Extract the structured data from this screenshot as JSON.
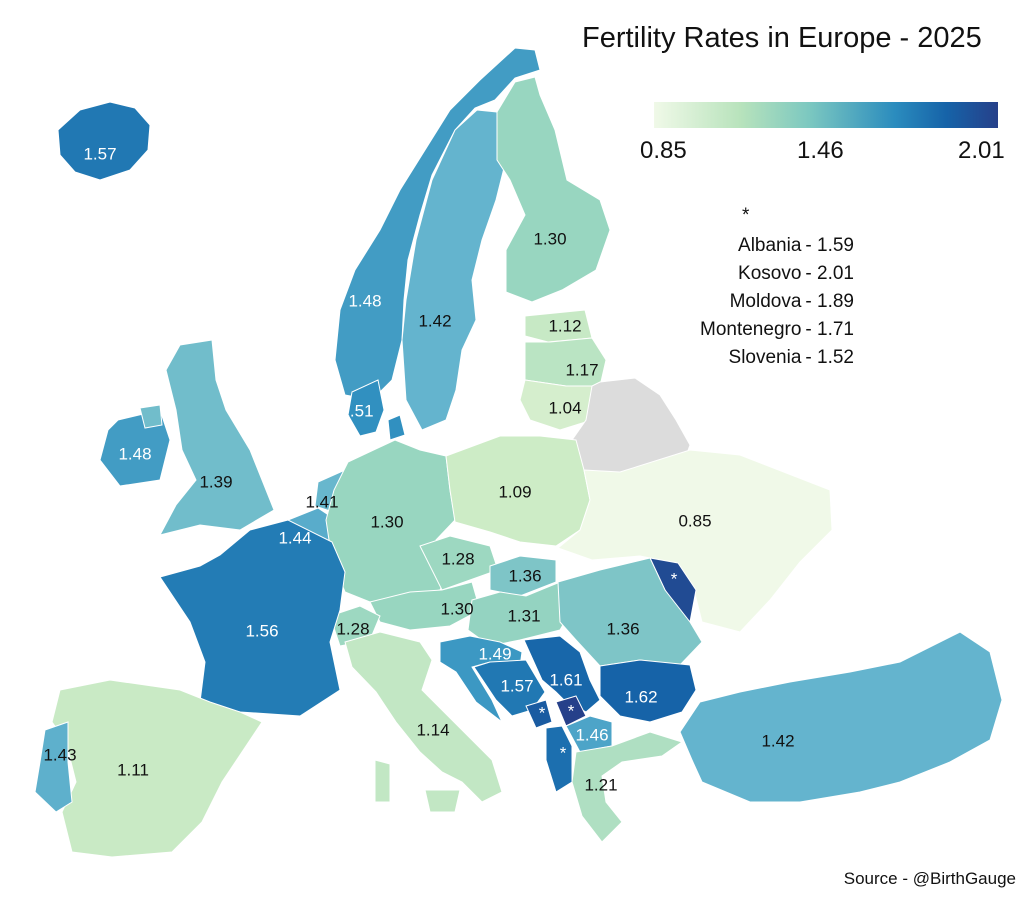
{
  "title": "Fertility Rates in Europe - 2025",
  "legend": {
    "min": "0.85",
    "mid": "1.46",
    "max": "2.01",
    "colors": [
      "#f0f9e8",
      "#b8e3bc",
      "#7cc8c0",
      "#2b8cbe",
      "#1663a8",
      "#26408a"
    ]
  },
  "footnote": {
    "marker": "*",
    "items": [
      {
        "country": "Albania",
        "value": "- 1.59"
      },
      {
        "country": "Kosovo",
        "value": "- 2.01"
      },
      {
        "country": "Moldova",
        "value": "- 1.89"
      },
      {
        "country": "Montenegro",
        "value": "- 1.71"
      },
      {
        "country": "Slovenia",
        "value": "- 1.52"
      }
    ]
  },
  "source": "Source - @BirthGauge",
  "no_data_color": "#dcdcdc",
  "countries": [
    {
      "name": "Iceland",
      "value": 1.57,
      "label": "1.57"
    },
    {
      "name": "Norway",
      "value": 1.48,
      "label": "1.48"
    },
    {
      "name": "Sweden",
      "value": 1.42,
      "label": "1.42"
    },
    {
      "name": "Finland",
      "value": 1.3,
      "label": "1.30"
    },
    {
      "name": "Estonia",
      "value": 1.12,
      "label": "1.12"
    },
    {
      "name": "Latvia",
      "value": 1.17,
      "label": "1.17"
    },
    {
      "name": "Lithuania",
      "value": 1.04,
      "label": "1.04"
    },
    {
      "name": "Belarus",
      "value": null,
      "label": ""
    },
    {
      "name": "Denmark",
      "value": 1.51,
      "label": "1.51"
    },
    {
      "name": "Ireland",
      "value": 1.48,
      "label": "1.48"
    },
    {
      "name": "United Kingdom",
      "value": 1.39,
      "label": "1.39"
    },
    {
      "name": "Netherlands",
      "value": 1.41,
      "label": "1.41"
    },
    {
      "name": "Belgium",
      "value": 1.44,
      "label": "1.44"
    },
    {
      "name": "Germany",
      "value": 1.3,
      "label": "1.30"
    },
    {
      "name": "Poland",
      "value": 1.09,
      "label": "1.09"
    },
    {
      "name": "Ukraine",
      "value": 0.85,
      "label": "0.85"
    },
    {
      "name": "Moldova",
      "value": 1.89,
      "label": "*"
    },
    {
      "name": "Czechia",
      "value": 1.28,
      "label": "1.28"
    },
    {
      "name": "Slovakia",
      "value": 1.36,
      "label": "1.36"
    },
    {
      "name": "Austria",
      "value": 1.3,
      "label": "1.30"
    },
    {
      "name": "Hungary",
      "value": 1.31,
      "label": "1.31"
    },
    {
      "name": "Romania",
      "value": 1.36,
      "label": "1.36"
    },
    {
      "name": "Switzerland",
      "value": 1.28,
      "label": "1.28"
    },
    {
      "name": "France",
      "value": 1.56,
      "label": "1.56"
    },
    {
      "name": "Italy",
      "value": 1.14,
      "label": "1.14"
    },
    {
      "name": "Croatia",
      "value": 1.49,
      "label": "1.49"
    },
    {
      "name": "Bosnia and Herzegovina",
      "value": 1.57,
      "label": "1.57"
    },
    {
      "name": "Serbia",
      "value": 1.61,
      "label": "1.61"
    },
    {
      "name": "Bulgaria",
      "value": 1.62,
      "label": "1.62"
    },
    {
      "name": "Montenegro",
      "value": 1.71,
      "label": "*"
    },
    {
      "name": "Kosovo",
      "value": 2.01,
      "label": "*"
    },
    {
      "name": "Albania",
      "value": 1.59,
      "label": "*"
    },
    {
      "name": "North Macedonia",
      "value": 1.46,
      "label": "1.46"
    },
    {
      "name": "Greece",
      "value": 1.21,
      "label": "1.21"
    },
    {
      "name": "Turkey",
      "value": 1.42,
      "label": "1.42"
    },
    {
      "name": "Spain",
      "value": 1.11,
      "label": "1.11"
    },
    {
      "name": "Portugal",
      "value": 1.43,
      "label": "1.43"
    }
  ]
}
